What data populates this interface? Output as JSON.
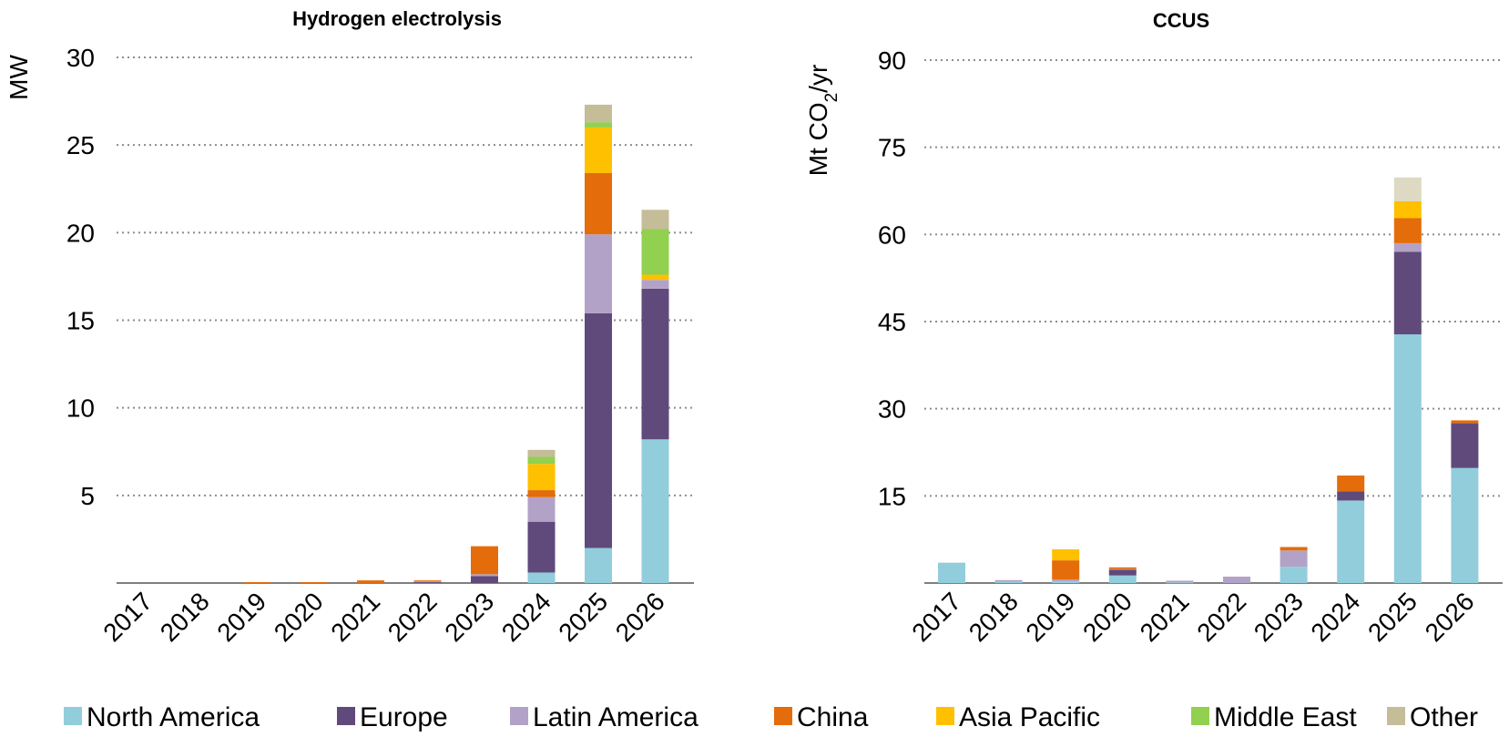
{
  "colors": {
    "North America": "#92cddc",
    "Europe": "#604a7b",
    "Latin America": "#b3a2c7",
    "China": "#e46c0a",
    "Asia Pacific": "#ffc000",
    "Middle East": "#92d050",
    "Other": "#c4bd97",
    "Other_ccus": "#ddd9c3"
  },
  "legend": [
    {
      "key": "North America",
      "label": "North America"
    },
    {
      "key": "Europe",
      "label": "Europe"
    },
    {
      "key": "Latin America",
      "label": "Latin America"
    },
    {
      "key": "China",
      "label": "China"
    },
    {
      "key": "Asia Pacific",
      "label": "Asia Pacific"
    },
    {
      "key": "Middle East",
      "label": "Middle East"
    },
    {
      "key": "Other",
      "label": "Other"
    }
  ],
  "chart_data": [
    {
      "type": "bar",
      "stacked": true,
      "title": "Hydrogen electrolysis",
      "ylabel": "MW",
      "ylim": [
        0,
        30
      ],
      "yticks": [
        5,
        10,
        15,
        20,
        25,
        30
      ],
      "grid": true,
      "categories": [
        "2017",
        "2018",
        "2019",
        "2020",
        "2021",
        "2022",
        "2023",
        "2024",
        "2025",
        "2026"
      ],
      "series": [
        {
          "name": "North America",
          "values": [
            0,
            0,
            0,
            0,
            0,
            0,
            0,
            0.6,
            2.0,
            8.2
          ]
        },
        {
          "name": "Europe",
          "values": [
            0,
            0,
            0,
            0,
            0,
            0.05,
            0.4,
            2.9,
            13.4,
            8.6
          ]
        },
        {
          "name": "Latin America",
          "values": [
            0,
            0,
            0,
            0,
            0,
            0.05,
            0.1,
            1.4,
            4.5,
            0.5
          ]
        },
        {
          "name": "China",
          "values": [
            0,
            0,
            0.05,
            0.05,
            0.15,
            0.05,
            1.6,
            0.4,
            3.5,
            0
          ]
        },
        {
          "name": "Asia Pacific",
          "values": [
            0,
            0,
            0,
            0,
            0,
            0,
            0,
            1.5,
            2.6,
            0.3
          ]
        },
        {
          "name": "Middle East",
          "values": [
            0,
            0,
            0,
            0,
            0,
            0,
            0,
            0.4,
            0.3,
            2.6
          ]
        },
        {
          "name": "Other",
          "values": [
            0,
            0,
            0,
            0,
            0,
            0,
            0,
            0.4,
            1.0,
            1.1
          ]
        }
      ]
    },
    {
      "type": "bar",
      "stacked": true,
      "title": "CCUS",
      "ylabel": "Mt CO2/yr",
      "ylim": [
        0,
        90
      ],
      "yticks": [
        15,
        30,
        45,
        60,
        75,
        90
      ],
      "grid": true,
      "categories": [
        "2017",
        "2018",
        "2019",
        "2020",
        "2021",
        "2022",
        "2023",
        "2024",
        "2025",
        "2026"
      ],
      "series": [
        {
          "name": "North America",
          "values": [
            3.5,
            0.2,
            0.3,
            1.3,
            0.1,
            0,
            2.8,
            14.2,
            42.8,
            19.8
          ]
        },
        {
          "name": "Europe",
          "values": [
            0,
            0,
            0,
            1.0,
            0,
            0,
            0,
            1.6,
            14.2,
            7.7
          ]
        },
        {
          "name": "Latin America",
          "values": [
            0,
            0.3,
            0.3,
            0.1,
            0.3,
            1.1,
            2.8,
            0,
            1.5,
            0
          ]
        },
        {
          "name": "China",
          "values": [
            0,
            0,
            3.3,
            0.3,
            0,
            0,
            0.6,
            2.7,
            4.3,
            0.5
          ]
        },
        {
          "name": "Asia Pacific",
          "values": [
            0,
            0,
            1.9,
            0,
            0,
            0,
            0,
            0,
            2.9,
            0
          ]
        },
        {
          "name": "Middle East",
          "values": [
            0,
            0,
            0,
            0,
            0,
            0,
            0,
            0,
            0,
            0
          ]
        },
        {
          "name": "Other",
          "values": [
            0,
            0,
            0,
            0,
            0,
            0,
            0,
            0,
            4.1,
            0
          ]
        }
      ]
    }
  ]
}
